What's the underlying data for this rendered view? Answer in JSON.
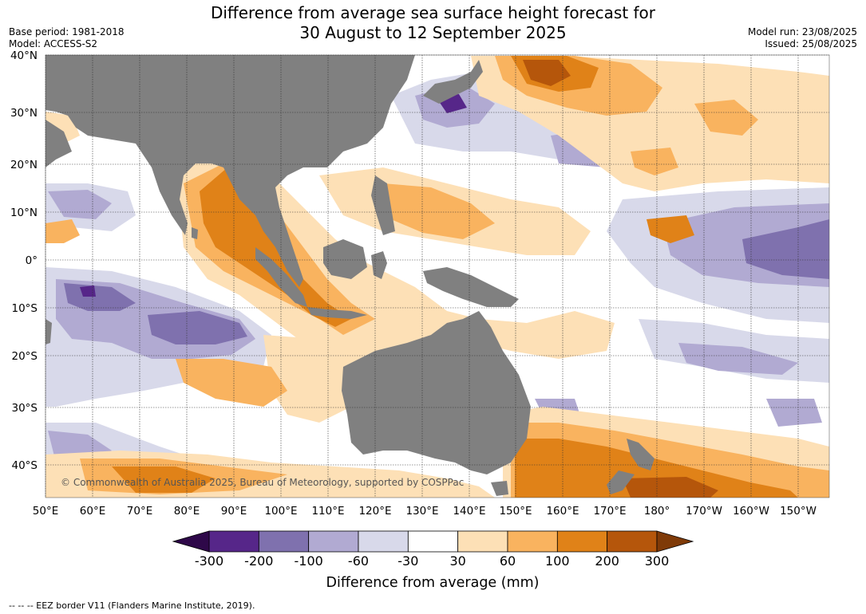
{
  "header": {
    "title_line1": "Difference from average sea surface height forecast for",
    "title_line2": "30 August to 12 September 2025",
    "base_period": "Base period: 1981-2018",
    "model": "Model: ACCESS-S2",
    "model_run": "Model run: 23/08/2025",
    "issued": "Issued: 25/08/2025"
  },
  "map": {
    "lat_labels": [
      "40°N",
      "30°N",
      "20°N",
      "10°N",
      "0°",
      "10°S",
      "20°S",
      "30°S",
      "40°S"
    ],
    "lon_labels": [
      "50°E",
      "60°E",
      "70°E",
      "80°E",
      "90°E",
      "100°E",
      "110°E",
      "120°E",
      "130°E",
      "140°E",
      "150°E",
      "160°E",
      "170°E",
      "180°",
      "170°W",
      "160°W",
      "150°W"
    ],
    "copyright": "© Commonwealth of Australia 2025, Bureau of Meteorology, supported by COSPPac",
    "colors": {
      "land": "#808080",
      "ocean_neutral": "#ffffff",
      "pos_30_60": "#fde0b6",
      "pos_60_100": "#f9b35f",
      "pos_100_200": "#e08218",
      "pos_200_300": "#b5560b",
      "pos_300_plus": "#7f3a08",
      "neg_30_60": "#d8d9ea",
      "neg_60_100": "#b1aad2",
      "neg_100_200": "#7f71ae",
      "neg_200_300": "#562689",
      "neg_300_plus": "#2e0849"
    }
  },
  "colorbar": {
    "tick_labels": [
      "-300",
      "-200",
      "-100",
      "-60",
      "-30",
      "30",
      "60",
      "100",
      "200",
      "300"
    ],
    "title": "Difference from average (mm)",
    "colors": [
      "#562689",
      "#7f71ae",
      "#b1aad2",
      "#d8d9ea",
      "#ffffff",
      "#fde0b6",
      "#f9b35f",
      "#e08218",
      "#b5560b"
    ],
    "low_color": "#2e0849",
    "high_color": "#7f3a08"
  },
  "footer": {
    "eez_note": "--  --  -- EEZ border V11 (Flanders Marine Institute, 2019)."
  }
}
